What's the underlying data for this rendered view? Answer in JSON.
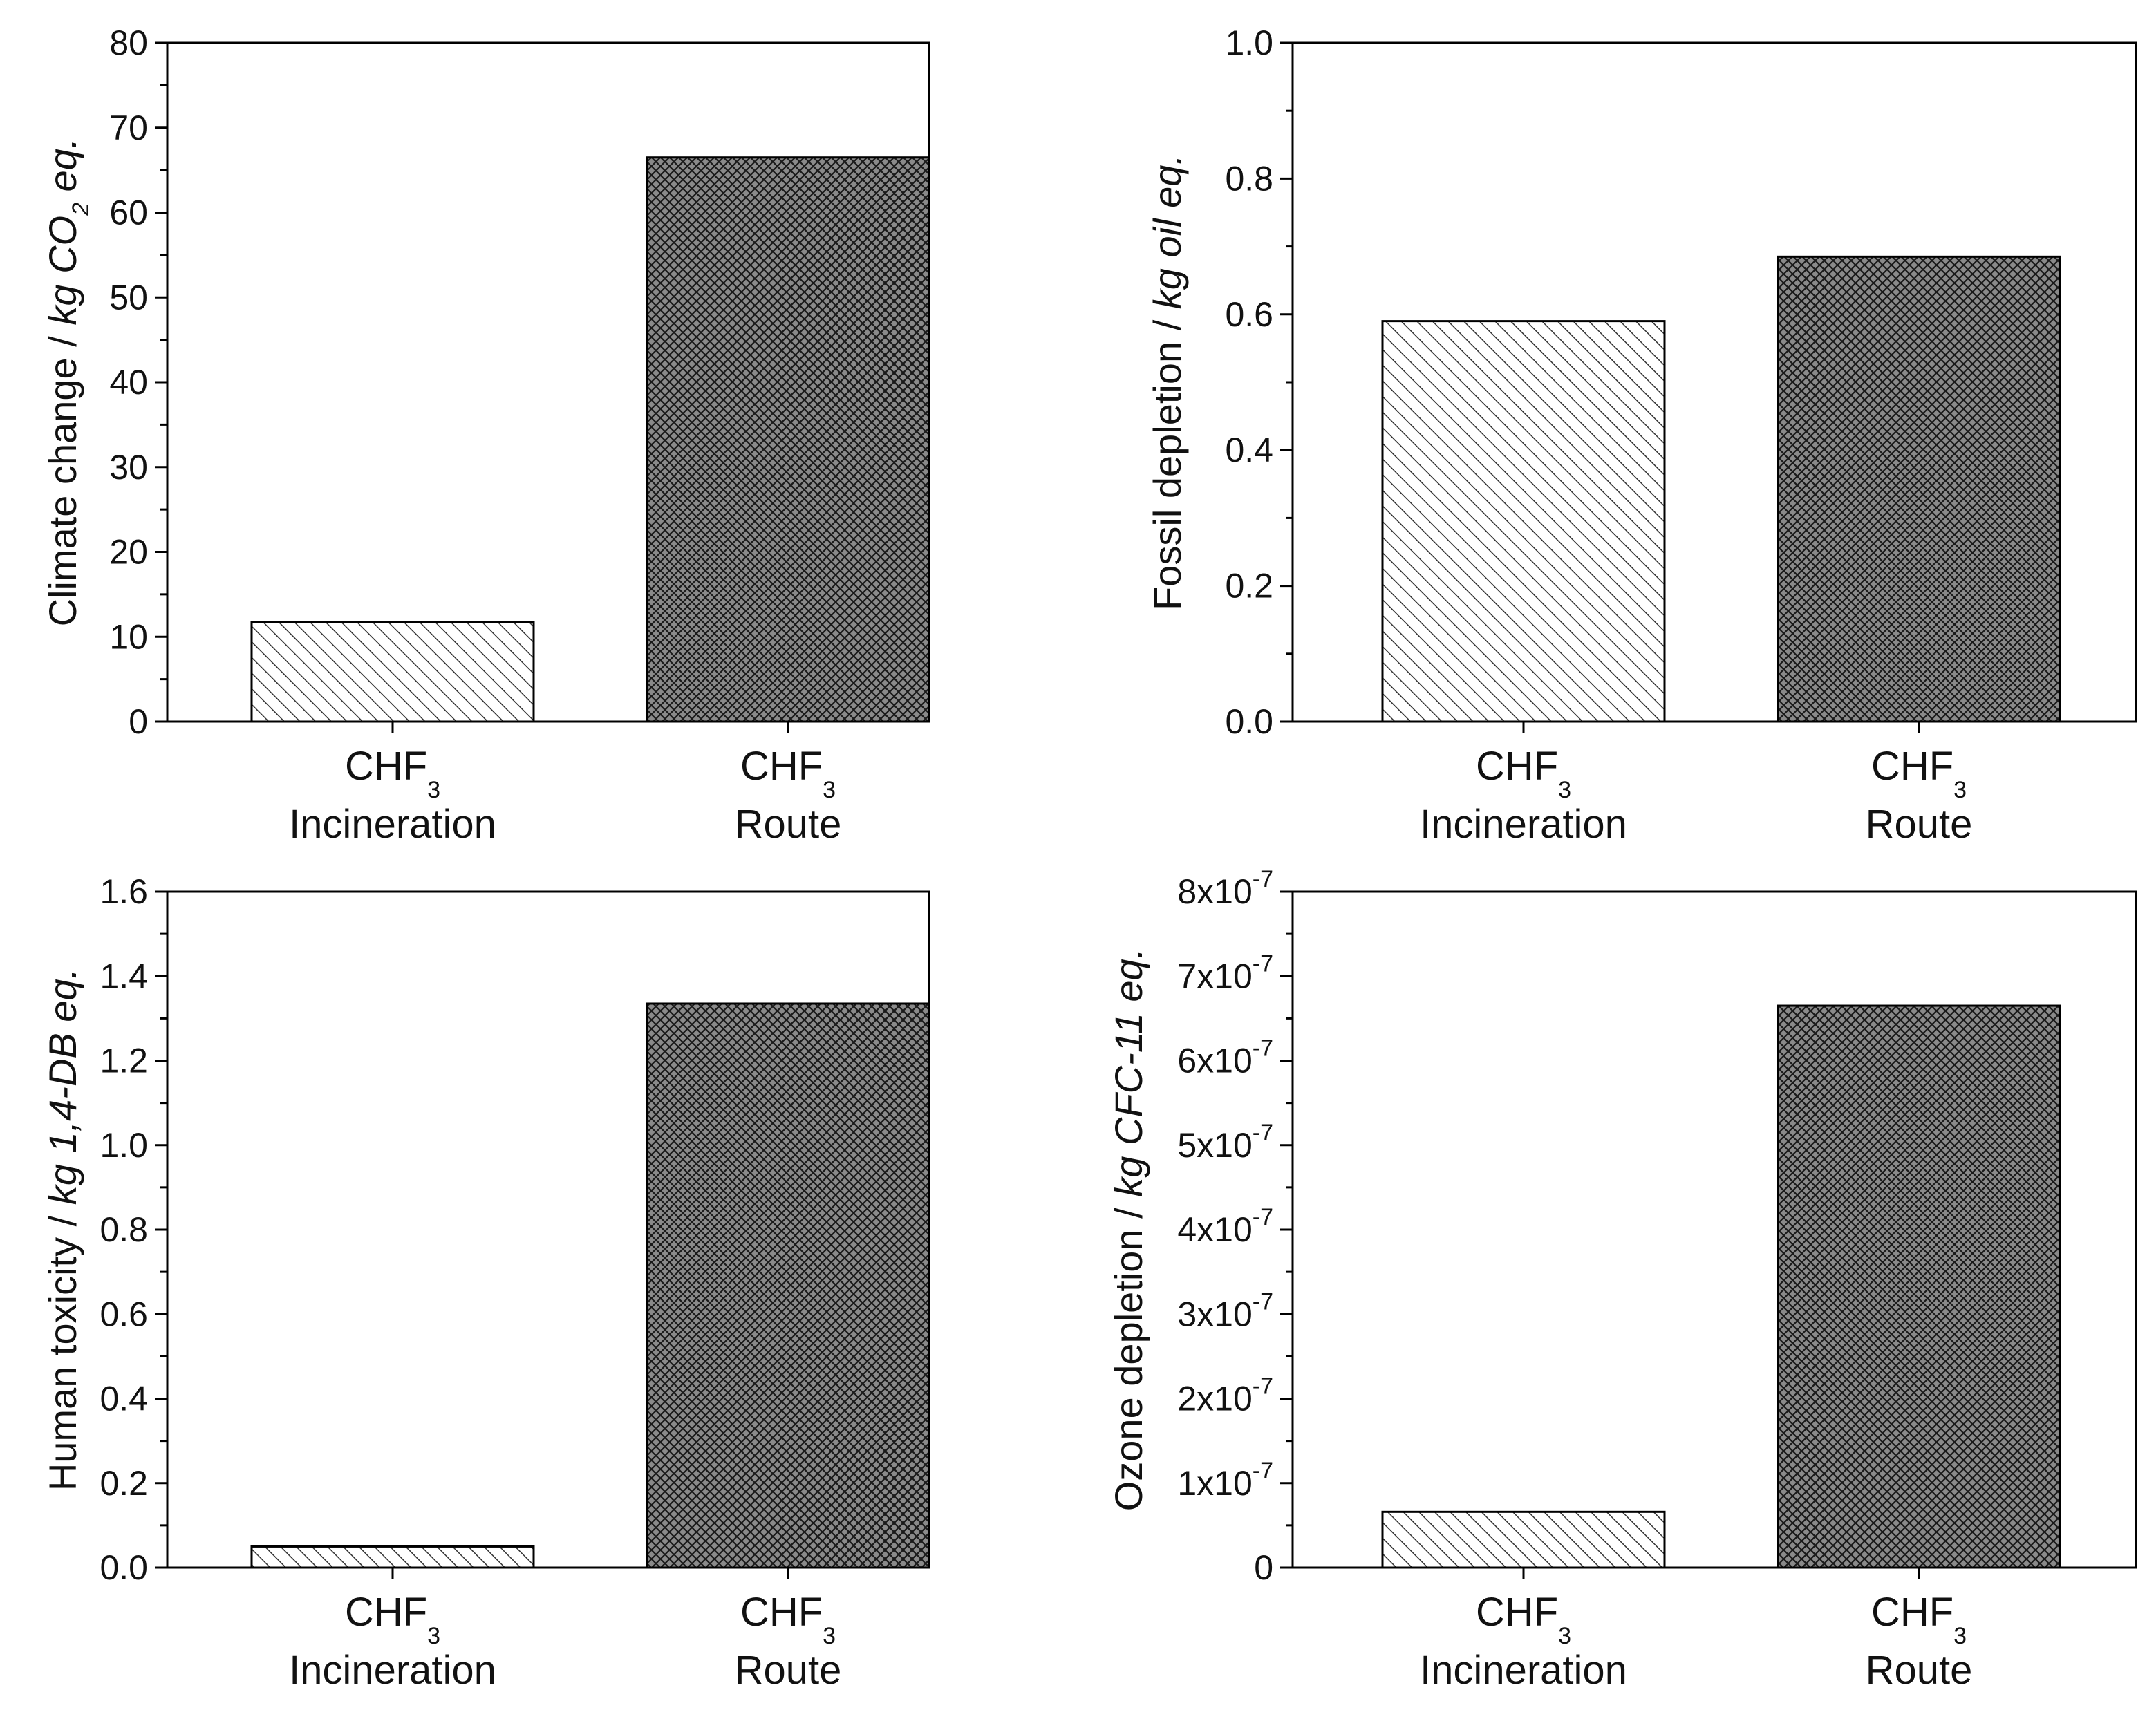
{
  "colors": {
    "axis": "#000000",
    "route_fill": "#8a8a8a",
    "route_hatch": "#1a1a1a",
    "incineration_fill": "#ffffff",
    "incineration_hatch": "#333333"
  },
  "chart_data": [
    {
      "type": "bar",
      "panel": "top-left",
      "categories": [
        {
          "name": "CHF",
          "subscript": "3",
          "line2": "Incineration",
          "pattern": "diagonal-hatch"
        },
        {
          "name": "CHF",
          "subscript": "3",
          "line2": "Route",
          "pattern": "crosshatch"
        }
      ],
      "values": [
        11.7,
        66.5
      ],
      "ylabel": {
        "prefix": "Climate change / ",
        "italic": "kg CO",
        "sub": "2",
        "italic_after": " eq."
      },
      "ylim": [
        0,
        80
      ],
      "yticks": [
        0,
        10,
        20,
        30,
        40,
        50,
        60,
        70,
        80
      ],
      "ytick_labels": [
        "0",
        "10",
        "20",
        "30",
        "40",
        "50",
        "60",
        "70",
        "80"
      ]
    },
    {
      "type": "bar",
      "panel": "top-right",
      "categories": [
        {
          "name": "CHF",
          "subscript": "3",
          "line2": "Incineration",
          "pattern": "diagonal-hatch"
        },
        {
          "name": "CHF",
          "subscript": "3",
          "line2": "Route",
          "pattern": "crosshatch"
        }
      ],
      "values": [
        0.59,
        0.685
      ],
      "ylabel": {
        "prefix": "Fossil depletion / ",
        "italic": "kg oil eq.",
        "sub": "",
        "italic_after": ""
      },
      "ylim": [
        0,
        1.0
      ],
      "yticks": [
        0,
        0.2,
        0.4,
        0.6,
        0.8,
        1.0
      ],
      "ytick_labels": [
        "0.0",
        "0.2",
        "0.4",
        "0.6",
        "0.8",
        "1.0"
      ]
    },
    {
      "type": "bar",
      "panel": "bottom-left",
      "categories": [
        {
          "name": "CHF",
          "subscript": "3",
          "line2": "Incineration",
          "pattern": "diagonal-hatch"
        },
        {
          "name": "CHF",
          "subscript": "3",
          "line2": "Route",
          "pattern": "crosshatch"
        }
      ],
      "values": [
        0.05,
        1.335
      ],
      "ylabel": {
        "prefix": "Human toxicity / ",
        "italic": "kg 1,4-DB eq.",
        "sub": "",
        "italic_after": ""
      },
      "ylim": [
        0,
        1.6
      ],
      "yticks": [
        0,
        0.2,
        0.4,
        0.6,
        0.8,
        1.0,
        1.2,
        1.4,
        1.6
      ],
      "ytick_labels": [
        "0.0",
        "0.2",
        "0.4",
        "0.6",
        "0.8",
        "1.0",
        "1.2",
        "1.4",
        "1.6"
      ]
    },
    {
      "type": "bar",
      "panel": "bottom-right",
      "categories": [
        {
          "name": "CHF",
          "subscript": "3",
          "line2": "Incineration",
          "pattern": "diagonal-hatch"
        },
        {
          "name": "CHF",
          "subscript": "3",
          "line2": "Route",
          "pattern": "crosshatch"
        }
      ],
      "values": [
        6.6e-08,
        6.65e-07
      ],
      "ylabel": {
        "prefix": "Ozone depletion / ",
        "italic": "kg CFC-11 eq.",
        "sub": "",
        "italic_after": ""
      },
      "ylim": [
        0,
        8e-07
      ],
      "yticks": [
        0,
        1e-07,
        2e-07,
        3e-07,
        4e-07,
        5e-07,
        6e-07,
        7e-07,
        8e-07
      ],
      "ytick_labels": [
        {
          "base": "0",
          "exp": ""
        },
        {
          "base": "1x10",
          "exp": "-7"
        },
        {
          "base": "2x10",
          "exp": "-7"
        },
        {
          "base": "3x10",
          "exp": "-7"
        },
        {
          "base": "4x10",
          "exp": "-7"
        },
        {
          "base": "5x10",
          "exp": "-7"
        },
        {
          "base": "6x10",
          "exp": "-7"
        },
        {
          "base": "7x10",
          "exp": "-7"
        },
        {
          "base": "8x10",
          "exp": "-7"
        }
      ]
    }
  ]
}
